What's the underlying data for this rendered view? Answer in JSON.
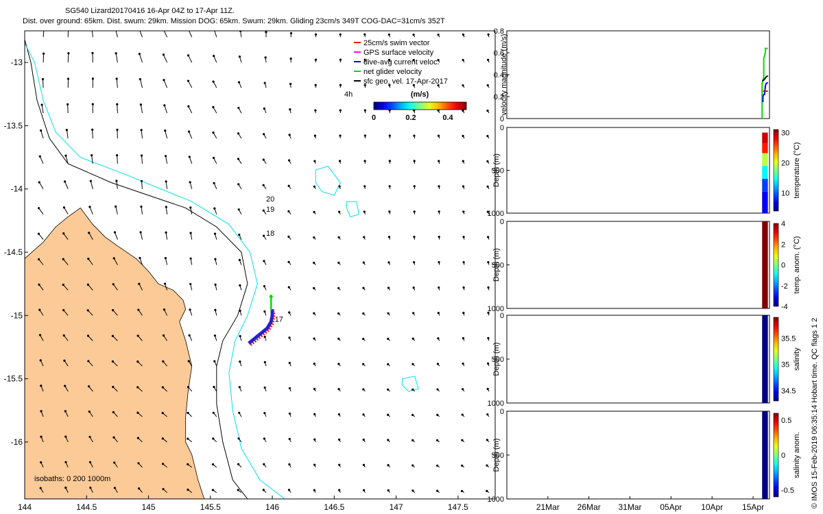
{
  "title": {
    "line1": "SG540 Lizard20170416 16-Apr 04Z to 17-Apr 11Z.",
    "line2": "Dist. over ground: 65km. Dist. swum: 29km. Mission DOG: 65km. Swum: 29km. Gliding 23cm/s 349T COG-DAC=31cm/s 352T"
  },
  "footer": "© IMOS 15-Feb-2019 06:35:14 Hobart time. QC flags 1  2",
  "colors": {
    "land": "#fbca96",
    "isobath_200": "#000000",
    "isobath_1000": "#00e0ee",
    "swim_vector": "#ff0000",
    "gps_velocity": "#ff00ff",
    "dac": "#0000ff",
    "net_velocity": "#00dd00",
    "sfc_geo": "#000000",
    "track_red": "#ee1111",
    "track_blue": "#2222cc"
  },
  "chart_data": [
    {
      "type": "scatter",
      "name": "glider-map",
      "xlim": [
        144,
        147.8
      ],
      "ylim": [
        -16.45,
        -12.75
      ],
      "xticks": [
        144,
        144.5,
        145,
        145.5,
        146,
        146.5,
        147,
        147.5
      ],
      "xtick_labels": [
        "144",
        "144.5",
        "145",
        "145.5",
        "146",
        "146.5",
        "147",
        "147.5"
      ],
      "yticks": [
        -13,
        -13.5,
        -14,
        -14.5,
        -15,
        -15.5,
        -16
      ],
      "ytick_labels": [
        "-13",
        "-13.5",
        "-14",
        "-14.5",
        "-15",
        "-15.5",
        "-16"
      ],
      "legend": [
        {
          "label": "25cm/s swim vector",
          "color": "#ff0000"
        },
        {
          "label": "GPS surface velocity",
          "color": "#ff00ff"
        },
        {
          "label": "dive-avg current veloc.",
          "color": "#0000ff"
        },
        {
          "label": "net glider velocity",
          "color": "#00dd00"
        },
        {
          "label": "sfc geo. vel. 17-Apr-2017",
          "color": "#000000"
        }
      ],
      "legend_position": "top-right",
      "colorbar": {
        "label": "(m/s)",
        "prefix": "4h",
        "ticks": [
          "0",
          "0.2",
          "0.4"
        ],
        "range": [
          0,
          0.5
        ]
      },
      "isobath_text": "isobaths: 0   200  1000m",
      "track": [
        {
          "x": 145.81,
          "y": -15.22
        },
        {
          "x": 145.86,
          "y": -15.18
        },
        {
          "x": 145.91,
          "y": -15.14
        },
        {
          "x": 145.96,
          "y": -15.1
        },
        {
          "x": 145.99,
          "y": -15.05
        },
        {
          "x": 146.0,
          "y": -15.0
        },
        {
          "x": 146.0,
          "y": -14.95
        }
      ],
      "net_velocity_arrow": {
        "x0": 145.99,
        "y0": -14.96,
        "x1": 145.99,
        "y1": -14.85
      },
      "dive_labels": [
        {
          "text": "20",
          "x": 145.95,
          "y": -14.1
        },
        {
          "text": "19",
          "x": 145.95,
          "y": -14.18
        },
        {
          "text": "18",
          "x": 145.95,
          "y": -14.37
        },
        {
          "text": "17",
          "x": 146.02,
          "y": -15.05
        }
      ],
      "coast": [
        [
          144,
          -14.55
        ],
        [
          144.15,
          -14.42
        ],
        [
          144.25,
          -14.3
        ],
        [
          144.35,
          -14.22
        ],
        [
          144.45,
          -14.15
        ],
        [
          144.55,
          -14.28
        ],
        [
          144.65,
          -14.38
        ],
        [
          144.75,
          -14.45
        ],
        [
          144.9,
          -14.55
        ],
        [
          145.0,
          -14.65
        ],
        [
          145.08,
          -14.75
        ],
        [
          145.2,
          -14.8
        ],
        [
          145.28,
          -14.88
        ],
        [
          145.3,
          -14.95
        ],
        [
          145.25,
          -15.05
        ],
        [
          145.3,
          -15.2
        ],
        [
          145.35,
          -15.4
        ],
        [
          145.32,
          -15.6
        ],
        [
          145.3,
          -15.8
        ],
        [
          145.3,
          -16.0
        ],
        [
          145.35,
          -16.1
        ],
        [
          145.4,
          -16.3
        ],
        [
          145.45,
          -16.45
        ],
        [
          144,
          -16.45
        ]
      ],
      "isobath_200_line": [
        [
          144,
          -12.82
        ],
        [
          144.05,
          -13.0
        ],
        [
          144.1,
          -13.3
        ],
        [
          144.2,
          -13.6
        ],
        [
          144.35,
          -13.8
        ],
        [
          144.7,
          -13.95
        ],
        [
          145.0,
          -14.05
        ],
        [
          145.3,
          -14.15
        ],
        [
          145.55,
          -14.3
        ],
        [
          145.75,
          -14.5
        ],
        [
          145.8,
          -14.75
        ],
        [
          145.72,
          -15.0
        ],
        [
          145.6,
          -15.2
        ],
        [
          145.55,
          -15.4
        ],
        [
          145.55,
          -15.7
        ],
        [
          145.6,
          -16.0
        ],
        [
          145.68,
          -16.3
        ],
        [
          145.8,
          -16.45
        ]
      ],
      "isobath_1000_line": [
        [
          144,
          -12.85
        ],
        [
          144.08,
          -13.0
        ],
        [
          144.15,
          -13.3
        ],
        [
          144.25,
          -13.55
        ],
        [
          144.45,
          -13.75
        ],
        [
          144.8,
          -13.88
        ],
        [
          145.1,
          -14.0
        ],
        [
          145.35,
          -14.1
        ],
        [
          145.65,
          -14.28
        ],
        [
          145.82,
          -14.5
        ],
        [
          145.88,
          -14.75
        ],
        [
          145.8,
          -15.0
        ],
        [
          145.7,
          -15.2
        ],
        [
          145.65,
          -15.45
        ],
        [
          145.68,
          -15.75
        ],
        [
          145.75,
          -16.05
        ],
        [
          145.9,
          -16.3
        ],
        [
          146.1,
          -16.45
        ]
      ],
      "reefs": [
        [
          [
            146.35,
            -13.85
          ],
          [
            146.45,
            -13.82
          ],
          [
            146.55,
            -13.95
          ],
          [
            146.5,
            -14.05
          ],
          [
            146.4,
            -14.02
          ],
          [
            146.35,
            -13.95
          ]
        ],
        [
          [
            146.6,
            -14.1
          ],
          [
            146.68,
            -14.1
          ],
          [
            146.7,
            -14.2
          ],
          [
            146.63,
            -14.22
          ],
          [
            146.6,
            -14.15
          ]
        ],
        [
          [
            147.05,
            -15.5
          ],
          [
            147.15,
            -15.48
          ],
          [
            147.18,
            -15.58
          ],
          [
            147.1,
            -15.6
          ],
          [
            147.05,
            -15.55
          ]
        ]
      ]
    },
    {
      "type": "line",
      "name": "velocity-magnitude",
      "ylabel": "velocity magnitude (m/s)",
      "ylim": [
        0,
        0.8
      ],
      "yticks": [
        "0",
        "0.2",
        "0.4",
        "0.6",
        "0.8"
      ],
      "xlim_days": [
        0,
        32
      ],
      "xticks": [
        "21Mar",
        "26Mar",
        "31Mar",
        "05Apr",
        "10Apr",
        "15Apr"
      ],
      "xtick_days": [
        5,
        10,
        15,
        20,
        25,
        30
      ],
      "series": [
        {
          "name": "net glider velocity",
          "color": "#00dd00",
          "x": [
            31.1,
            31.1,
            31.3,
            31.3,
            31.5,
            31.5,
            31.8
          ],
          "y": [
            0.0,
            0.32,
            0.38,
            0.55,
            0.6,
            0.64,
            0.64
          ]
        },
        {
          "name": "dive-avg current veloc.",
          "color": "#0000ff",
          "x": [
            31.2,
            31.2,
            31.3,
            31.4,
            31.5,
            31.6,
            31.8
          ],
          "y": [
            0.15,
            0.2,
            0.22,
            0.22,
            0.3,
            0.32,
            0.33
          ]
        },
        {
          "name": "25cm/s swim vector",
          "color": "#ff0000",
          "x": [
            31.2,
            31.8
          ],
          "y": [
            0.25,
            0.25
          ]
        },
        {
          "name": "sfc geo. vel. 17-Apr-2017",
          "color": "#000000",
          "x": [
            31.15,
            31.4,
            31.6,
            31.8
          ],
          "y": [
            0.34,
            0.36,
            0.38,
            0.39
          ]
        }
      ]
    },
    {
      "type": "scatter",
      "name": "temperature",
      "ylabel": "Depth (m)",
      "ylim": [
        1000,
        0
      ],
      "yticks": [
        "0",
        "500",
        "1000"
      ],
      "colorbar": {
        "label": "temperature (°C)",
        "ticks": [
          "10",
          "20",
          "30"
        ],
        "range": [
          4,
          31
        ]
      },
      "profile_x_days": [
        31.1,
        31.8
      ],
      "profile": [
        {
          "d": 60,
          "v": 29
        },
        {
          "d": 180,
          "v": 27
        },
        {
          "d": 300,
          "v": 19
        },
        {
          "d": 450,
          "v": 14
        },
        {
          "d": 600,
          "v": 9
        },
        {
          "d": 750,
          "v": 7
        },
        {
          "d": 1000,
          "v": 6
        }
      ]
    },
    {
      "type": "scatter",
      "name": "temperature-anomaly",
      "ylabel": "Depth (m)",
      "ylim": [
        1000,
        0
      ],
      "yticks": [
        "0",
        "500",
        "1000"
      ],
      "colorbar": {
        "label": "temp. anom. (°C)",
        "ticks": [
          "-4",
          "-2",
          "0",
          "2",
          "4"
        ],
        "range": [
          -4,
          4
        ]
      },
      "profile_x_days": [
        31.1,
        31.8
      ],
      "profile": [
        {
          "d": 0,
          "v": 4
        },
        {
          "d": 1000,
          "v": 4
        }
      ]
    },
    {
      "type": "scatter",
      "name": "salinity",
      "ylabel": "Depth (m)",
      "ylim": [
        1000,
        0
      ],
      "yticks": [
        "0",
        "500",
        "1000"
      ],
      "colorbar": {
        "label": "salinity",
        "ticks": [
          "34.5",
          "35",
          "35.5"
        ],
        "range": [
          34.3,
          35.9
        ]
      },
      "profile_x_days": [
        31.1,
        31.8
      ],
      "profile": [
        {
          "d": 0,
          "v": 34.3
        },
        {
          "d": 1000,
          "v": 34.3
        }
      ]
    },
    {
      "type": "scatter",
      "name": "salinity-anomaly",
      "ylabel": "Depth (m)",
      "ylim": [
        1000,
        0
      ],
      "yticks": [
        "0",
        "500",
        "1000"
      ],
      "colorbar": {
        "label": "salinity anom.",
        "ticks": [
          "-0.5",
          "0",
          "0.5"
        ],
        "range": [
          -0.6,
          0.6
        ]
      },
      "profile_x_days": [
        31.1,
        31.8
      ],
      "profile": [
        {
          "d": 0,
          "v": -0.6
        },
        {
          "d": 1000,
          "v": -0.6
        }
      ]
    }
  ]
}
